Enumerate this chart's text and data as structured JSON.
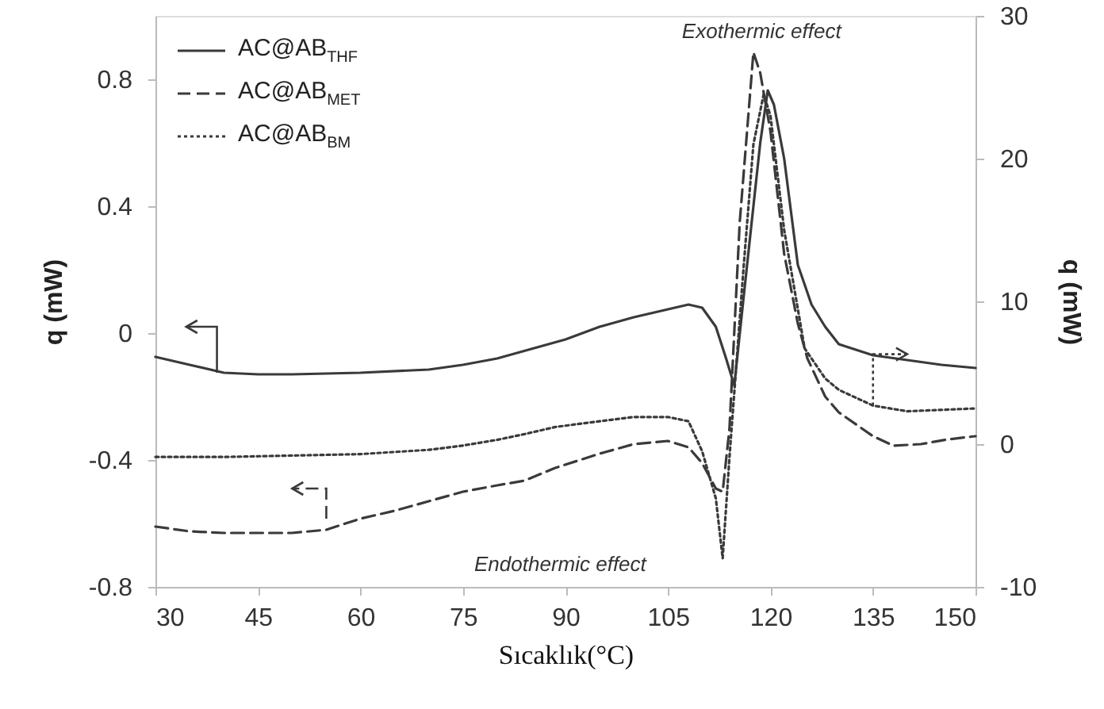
{
  "chart_data": {
    "type": "line",
    "xlabel": "Sıcaklık(°C)",
    "ylabel": "q (mW)",
    "y2label": "q (mW)",
    "xlim": [
      30,
      150
    ],
    "xticks": [
      30,
      45,
      60,
      75,
      90,
      105,
      120,
      135,
      150
    ],
    "ylim": [
      -0.8,
      1.0
    ],
    "yticks": [
      -0.8,
      -0.4,
      0,
      0.4,
      0.8
    ],
    "y2lim": [
      -10,
      30
    ],
    "y2ticks": [
      -10,
      0,
      10,
      20,
      30
    ],
    "grid": false,
    "legend": "top left",
    "marker": "none",
    "annotations": [
      "Exothermic effect",
      "Endothermic effect"
    ],
    "series": [
      {
        "name": "AC@AB$_{THF}$",
        "color": "#3a3a3a",
        "line_style": "solid",
        "x": [
          30,
          35,
          40,
          45,
          50,
          60,
          70,
          75,
          80,
          85,
          90,
          95,
          100,
          105,
          108,
          110,
          112,
          113.5,
          114.7,
          116,
          117,
          118.5,
          119.6,
          120.5,
          122,
          124,
          126,
          128,
          130,
          135,
          140,
          145,
          150
        ],
        "values": [
          -0.075,
          -0.1,
          -0.125,
          -0.13,
          -0.13,
          -0.125,
          -0.115,
          -0.1,
          -0.08,
          -0.05,
          -0.02,
          0.02,
          0.05,
          0.075,
          0.09,
          0.08,
          0.02,
          -0.08,
          -0.165,
          0.1,
          0.3,
          0.6,
          0.765,
          0.72,
          0.55,
          0.215,
          0.09,
          0.02,
          -0.035,
          -0.07,
          -0.085,
          -0.1,
          -0.11
        ]
      },
      {
        "name": "AC@AB$_{MET}$",
        "color": "#3a3a3a",
        "line_style": "dashed",
        "x": [
          30,
          35,
          40,
          45,
          50,
          55,
          60,
          65,
          70,
          75,
          80,
          84,
          88.5,
          95,
          100,
          105,
          108,
          110,
          111,
          112,
          113,
          114,
          115.5,
          117.5,
          118.5,
          120,
          122,
          124,
          125.4,
          128,
          130,
          135,
          138,
          142,
          146,
          150
        ],
        "values": [
          -0.61,
          -0.625,
          -0.63,
          -0.63,
          -0.63,
          -0.62,
          -0.585,
          -0.56,
          -0.53,
          -0.5,
          -0.48,
          -0.465,
          -0.425,
          -0.38,
          -0.35,
          -0.34,
          -0.36,
          -0.41,
          -0.45,
          -0.49,
          -0.5,
          -0.3,
          0.35,
          0.885,
          0.82,
          0.635,
          0.25,
          0.03,
          -0.08,
          -0.2,
          -0.25,
          -0.325,
          -0.355,
          -0.35,
          -0.335,
          -0.325
        ]
      },
      {
        "name": "AC@AB$_{BM}$",
        "color": "#3a3a3a",
        "line_style": "dotted",
        "axis": "y2",
        "x": [
          30,
          40,
          50,
          60,
          70,
          75,
          80,
          84,
          88.5,
          95,
          100,
          105,
          108,
          110,
          112,
          113,
          114,
          116,
          117.5,
          119,
          120,
          122,
          125,
          128,
          130,
          135,
          140,
          145,
          150
        ],
        "values": [
          -0.9,
          -0.9,
          -0.8,
          -0.7,
          -0.4,
          -0.1,
          0.3,
          0.7,
          1.2,
          1.6,
          1.9,
          1.9,
          1.6,
          -0.5,
          -3.8,
          -8.0,
          -0.9,
          12,
          21,
          24.5,
          23,
          15,
          6.7,
          4.6,
          3.8,
          2.7,
          2.3,
          2.4,
          2.5
        ]
      }
    ]
  }
}
